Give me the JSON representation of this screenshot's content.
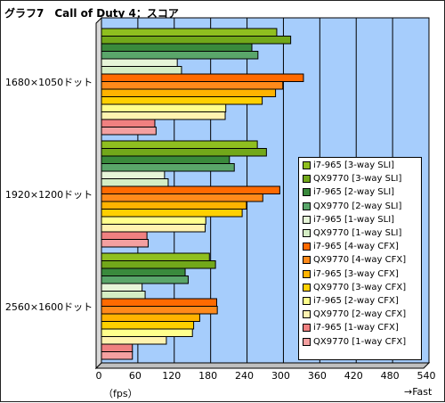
{
  "chart_data": {
    "type": "bar",
    "orientation": "horizontal",
    "title": "グラフ7　Call of Duty 4：スコア",
    "categories": [
      "1680×1050ドット",
      "1920×1200ドット",
      "2560×1600ドット"
    ],
    "series": [
      {
        "name": "i7-965 [3-way SLI]",
        "color": "#8fbf1f",
        "values": [
          289,
          257,
          178
        ]
      },
      {
        "name": "QX9770 [3-way SLI]",
        "color": "#72a81a",
        "values": [
          312,
          272,
          188
        ]
      },
      {
        "name": "i7-965 [2-way SLI]",
        "color": "#3a8a3c",
        "values": [
          248,
          211,
          138
        ]
      },
      {
        "name": "QX9770 [2-way SLI]",
        "color": "#5aa66a",
        "values": [
          258,
          219,
          143
        ]
      },
      {
        "name": "i7-965 [1-way SLI]",
        "color": "#e6f5d8",
        "values": [
          125,
          104,
          67
        ]
      },
      {
        "name": "QX9770 [1-way SLI]",
        "color": "#d4edc4",
        "values": [
          132,
          110,
          72
        ]
      },
      {
        "name": "i7-965 [4-way CFX]",
        "color": "#ff6a00",
        "values": [
          333,
          294,
          190
        ]
      },
      {
        "name": "QX9770 [4-way CFX]",
        "color": "#ff8a1a",
        "values": [
          299,
          266,
          191
        ]
      },
      {
        "name": "i7-965 [3-way CFX]",
        "color": "#ffb300",
        "values": [
          287,
          239,
          162
        ]
      },
      {
        "name": "QX9770 [3-way CFX]",
        "color": "#ffd000",
        "values": [
          265,
          232,
          152
        ]
      },
      {
        "name": "i7-965 [2-way CFX]",
        "color": "#ffff8c",
        "values": [
          205,
          172,
          150
        ]
      },
      {
        "name": "QX9770 [2-way CFX]",
        "color": "#fff3b0",
        "values": [
          204,
          171,
          107
        ]
      },
      {
        "name": "i7-965 [1-way CFX]",
        "color": "#f08080",
        "values": [
          88,
          75,
          51
        ]
      },
      {
        "name": "QX9770 [1-way CFX]",
        "color": "#f4a0a0",
        "values": [
          90,
          77,
          51
        ]
      }
    ],
    "xlim": [
      0,
      540
    ],
    "xticks": [
      0,
      60,
      120,
      180,
      240,
      300,
      360,
      420,
      480,
      540
    ],
    "x_unit_label": "（fps）",
    "x_direction_label": "→Fast",
    "grid": true,
    "plot_background": "#a6cdfc",
    "legend": "inside-bottom-right"
  }
}
